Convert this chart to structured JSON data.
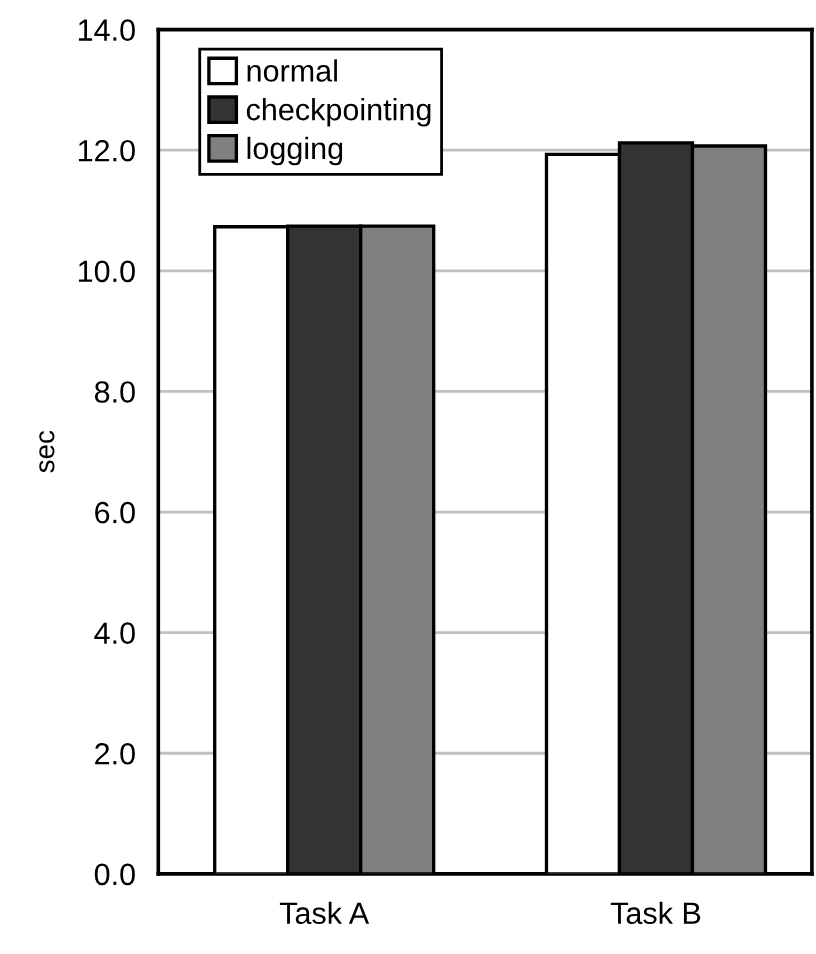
{
  "chart_data": {
    "type": "bar",
    "ylabel": "sec",
    "categories": [
      "Task A",
      "Task B"
    ],
    "series": [
      {
        "name": "normal",
        "color": "#ffffff",
        "values": [
          10.73,
          11.93
        ]
      },
      {
        "name": "checkpointing",
        "color": "#333333",
        "values": [
          10.74,
          12.12
        ]
      },
      {
        "name": "logging",
        "color": "#808080",
        "values": [
          10.74,
          12.07
        ]
      }
    ],
    "ylim": [
      0,
      14
    ],
    "yticks": [
      {
        "value": 0,
        "label": "0.0"
      },
      {
        "value": 2,
        "label": "2.0"
      },
      {
        "value": 4,
        "label": "4.0"
      },
      {
        "value": 6,
        "label": "6.0"
      },
      {
        "value": 8,
        "label": "8.0"
      },
      {
        "value": 10,
        "label": "10.0"
      },
      {
        "value": 12,
        "label": "12.0"
      },
      {
        "value": 14,
        "label": "14.0"
      }
    ],
    "grid": "y",
    "legend": "top left"
  }
}
